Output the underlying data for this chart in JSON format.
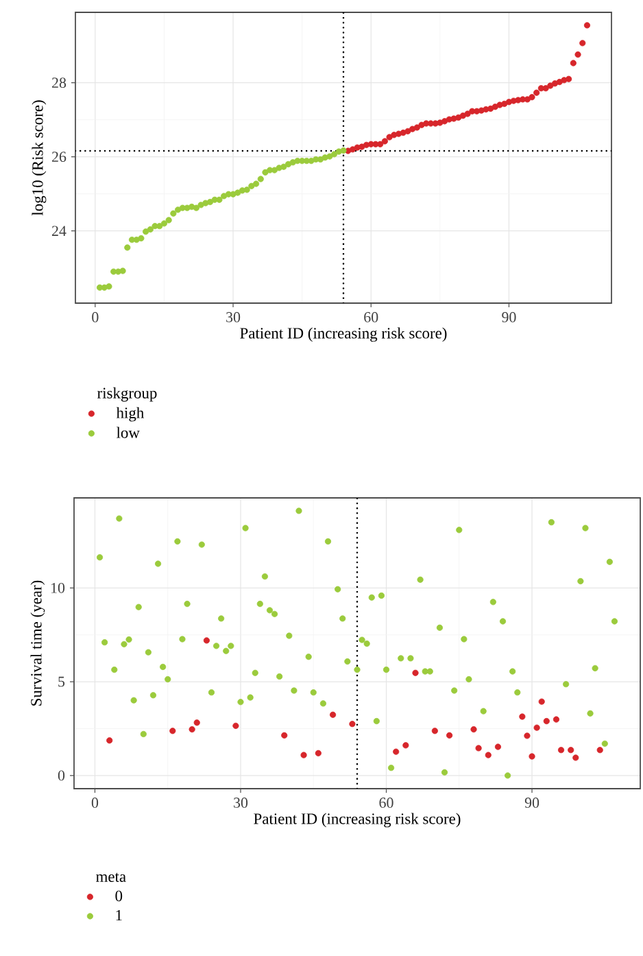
{
  "chart_data": [
    {
      "type": "scatter",
      "xlabel": "Patient ID (increasing risk score)",
      "ylabel": "log10 (Risk score)",
      "legend_title": "riskgroup",
      "legend": "bottom",
      "grid": true,
      "marker": "circle",
      "xlim": [
        -4.3,
        112.3
      ],
      "ylim": [
        22.05,
        29.9
      ],
      "xticks": [
        0,
        30,
        60,
        90
      ],
      "yticks": [
        24,
        26,
        28
      ],
      "ref_lines": [
        {
          "axis": "x",
          "value": 54,
          "line_style": "dotted",
          "color": "#000000"
        },
        {
          "axis": "y",
          "value": 26.16,
          "line_style": "dotted",
          "color": "#000000"
        }
      ],
      "series": [
        {
          "name": "high",
          "color": "#d7262b",
          "x": [
            55,
            56,
            57,
            58,
            59,
            60,
            61,
            62,
            63,
            64,
            65,
            66,
            67,
            68,
            69,
            70,
            71,
            72,
            73,
            74,
            75,
            76,
            77,
            78,
            79,
            80,
            81,
            82,
            83,
            84,
            85,
            86,
            87,
            88,
            89,
            90,
            91,
            92,
            93,
            94,
            95,
            96,
            97,
            98,
            99,
            100,
            101,
            102,
            103,
            104,
            105,
            106,
            107
          ],
          "values": [
            26.16,
            26.2,
            26.25,
            26.27,
            26.32,
            26.34,
            26.34,
            26.34,
            26.42,
            26.53,
            26.59,
            26.62,
            26.65,
            26.69,
            26.75,
            26.79,
            26.86,
            26.9,
            26.9,
            26.9,
            26.92,
            26.96,
            27.01,
            27.03,
            27.06,
            27.11,
            27.16,
            27.23,
            27.23,
            27.25,
            27.28,
            27.3,
            27.35,
            27.4,
            27.43,
            27.48,
            27.51,
            27.53,
            27.55,
            27.55,
            27.61,
            27.73,
            27.85,
            27.85,
            27.92,
            27.98,
            28.02,
            28.07,
            28.1,
            28.53,
            28.76,
            29.07,
            29.55
          ]
        },
        {
          "name": "low",
          "color": "#9bcb3c",
          "x": [
            1,
            2,
            3,
            4,
            5,
            6,
            7,
            8,
            9,
            10,
            11,
            12,
            13,
            14,
            15,
            16,
            17,
            18,
            19,
            20,
            21,
            22,
            23,
            24,
            25,
            26,
            27,
            28,
            29,
            30,
            31,
            32,
            33,
            34,
            35,
            36,
            37,
            38,
            39,
            40,
            41,
            42,
            43,
            44,
            45,
            46,
            47,
            48,
            49,
            50,
            51,
            52,
            53,
            54
          ],
          "values": [
            22.47,
            22.47,
            22.5,
            22.9,
            22.9,
            22.92,
            23.55,
            23.76,
            23.76,
            23.8,
            23.98,
            24.04,
            24.13,
            24.13,
            24.2,
            24.29,
            24.47,
            24.57,
            24.62,
            24.62,
            24.65,
            24.62,
            24.7,
            24.75,
            24.78,
            24.84,
            24.84,
            24.94,
            24.99,
            24.99,
            25.03,
            25.09,
            25.11,
            25.21,
            25.27,
            25.4,
            25.58,
            25.64,
            25.64,
            25.7,
            25.73,
            25.8,
            25.85,
            25.89,
            25.89,
            25.89,
            25.89,
            25.93,
            25.93,
            25.98,
            26.01,
            26.07,
            26.14,
            26.17
          ]
        }
      ]
    },
    {
      "type": "scatter",
      "xlabel": "Patient ID (increasing risk score)",
      "ylabel": "Survival time (year)",
      "legend_title": "meta",
      "legend": "bottom",
      "grid": true,
      "marker": "circle",
      "xlim": [
        -4.3,
        112.3
      ],
      "ylim": [
        -0.7,
        14.8
      ],
      "xticks": [
        0,
        30,
        60,
        90
      ],
      "yticks": [
        0,
        5,
        10
      ],
      "ref_lines": [
        {
          "axis": "x",
          "value": 54,
          "line_style": "dotted",
          "color": "#000000"
        }
      ],
      "series": [
        {
          "name": "0",
          "color": "#d7262b",
          "x": [
            3,
            16,
            20,
            21,
            23,
            29,
            39,
            43,
            46,
            49,
            53,
            62,
            64,
            66,
            70,
            73,
            78,
            79,
            81,
            83,
            88,
            89,
            90,
            91,
            92,
            93,
            95,
            96,
            98,
            99,
            104
          ],
          "values": [
            1.87,
            2.38,
            2.46,
            2.82,
            7.2,
            2.65,
            2.14,
            1.09,
            1.19,
            3.24,
            2.75,
            1.27,
            1.61,
            5.47,
            2.38,
            2.14,
            2.46,
            1.46,
            1.09,
            1.53,
            3.14,
            2.12,
            1.02,
            2.55,
            3.94,
            2.9,
            2.99,
            1.36,
            1.36,
            0.95,
            1.36
          ]
        },
        {
          "name": "1",
          "color": "#9bcb3c",
          "x": [
            1,
            2,
            4,
            5,
            6,
            7,
            8,
            9,
            10,
            11,
            12,
            13,
            14,
            15,
            17,
            18,
            19,
            22,
            24,
            25,
            26,
            27,
            28,
            30,
            31,
            32,
            33,
            34,
            35,
            36,
            37,
            38,
            40,
            41,
            42,
            44,
            45,
            47,
            48,
            50,
            51,
            52,
            54,
            55,
            56,
            57,
            58,
            59,
            60,
            61,
            63,
            65,
            67,
            68,
            69,
            71,
            72,
            74,
            75,
            76,
            77,
            80,
            82,
            84,
            85,
            86,
            87,
            94,
            97,
            100,
            101,
            102,
            103,
            105,
            106,
            107
          ],
          "values": [
            11.63,
            7.1,
            5.64,
            13.7,
            7.0,
            7.25,
            4.01,
            8.98,
            2.21,
            6.57,
            4.28,
            11.29,
            5.79,
            5.13,
            12.48,
            7.27,
            9.15,
            12.31,
            4.43,
            6.91,
            8.37,
            6.64,
            6.91,
            3.92,
            13.19,
            4.16,
            5.47,
            9.15,
            10.61,
            8.81,
            8.61,
            5.28,
            7.45,
            4.53,
            14.11,
            6.33,
            4.43,
            3.84,
            12.48,
            9.93,
            8.37,
            6.08,
            5.64,
            7.23,
            7.03,
            9.49,
            2.9,
            9.59,
            5.64,
            0.41,
            6.25,
            6.25,
            10.44,
            5.55,
            5.55,
            7.88,
            0.17,
            4.53,
            13.09,
            7.27,
            5.13,
            3.43,
            9.25,
            8.22,
            0.0,
            5.55,
            4.43,
            13.5,
            4.87,
            10.36,
            13.19,
            3.31,
            5.72,
            1.7,
            11.39,
            8.22
          ]
        }
      ]
    }
  ]
}
